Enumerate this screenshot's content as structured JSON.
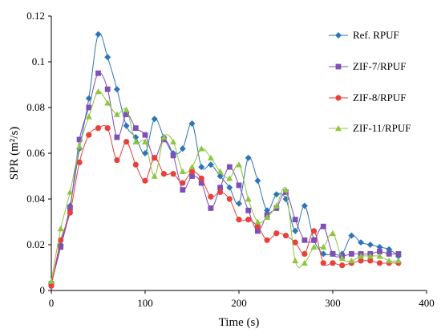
{
  "chart_data": {
    "type": "line",
    "xlabel": "Time (s)",
    "ylabel": "SPR (m²/s)",
    "xlim": [
      0,
      400
    ],
    "ylim": [
      0,
      0.12
    ],
    "xticks": [
      "0",
      "100",
      "200",
      "300",
      "400"
    ],
    "yticks": [
      "0",
      "0.02",
      "0.04",
      "0.06",
      "0.08",
      "0.1",
      "0.12"
    ],
    "grid": false,
    "legend_position": "right",
    "x": [
      0,
      10,
      20,
      30,
      40,
      50,
      60,
      70,
      80,
      90,
      100,
      110,
      120,
      130,
      140,
      150,
      160,
      170,
      180,
      190,
      200,
      210,
      220,
      230,
      240,
      250,
      260,
      270,
      280,
      290,
      300,
      310,
      320,
      330,
      340,
      350,
      360,
      370
    ],
    "series": [
      {
        "name": "Ref. RPUF",
        "color": "#2e75b6",
        "marker": "diamond",
        "values": [
          0.003,
          0.02,
          0.037,
          0.062,
          0.084,
          0.112,
          0.102,
          0.088,
          0.072,
          0.067,
          0.06,
          0.075,
          0.067,
          0.06,
          0.062,
          0.073,
          0.054,
          0.055,
          0.05,
          0.045,
          0.038,
          0.058,
          0.048,
          0.035,
          0.042,
          0.04,
          0.026,
          0.037,
          0.022,
          0.016,
          0.016,
          0.016,
          0.024,
          0.021,
          0.02,
          0.019,
          0.018,
          0.015
        ]
      },
      {
        "name": "ZIF-7/RPUF",
        "color": "#7f4fb8",
        "marker": "square",
        "values": [
          0.003,
          0.019,
          0.036,
          0.066,
          0.08,
          0.095,
          0.088,
          0.067,
          0.077,
          0.071,
          0.068,
          0.058,
          0.066,
          0.059,
          0.044,
          0.05,
          0.047,
          0.036,
          0.045,
          0.054,
          0.046,
          0.035,
          0.026,
          0.033,
          0.036,
          0.043,
          0.031,
          0.022,
          0.022,
          0.028,
          0.016,
          0.015,
          0.016,
          0.016,
          0.016,
          0.017,
          0.016,
          0.016
        ]
      },
      {
        "name": "ZIF-8/RPUF",
        "color": "#e8413c",
        "marker": "circle",
        "values": [
          0.002,
          0.022,
          0.034,
          0.056,
          0.068,
          0.071,
          0.071,
          0.057,
          0.065,
          0.055,
          0.048,
          0.058,
          0.051,
          0.051,
          0.047,
          0.052,
          0.049,
          0.041,
          0.043,
          0.04,
          0.031,
          0.031,
          0.028,
          0.022,
          0.025,
          0.024,
          0.021,
          0.016,
          0.026,
          0.012,
          0.012,
          0.011,
          0.012,
          0.013,
          0.013,
          0.012,
          0.012,
          0.012
        ]
      },
      {
        "name": "ZIF-11/RPUF",
        "color": "#8dc63f",
        "marker": "triangle",
        "values": [
          0.004,
          0.027,
          0.043,
          0.063,
          0.076,
          0.087,
          0.082,
          0.077,
          0.079,
          0.065,
          0.065,
          0.05,
          0.067,
          0.065,
          0.052,
          0.054,
          0.062,
          0.058,
          0.052,
          0.049,
          0.055,
          0.04,
          0.03,
          0.032,
          0.037,
          0.044,
          0.013,
          0.012,
          0.019,
          0.019,
          0.025,
          0.014,
          0.013,
          0.015,
          0.015,
          0.015,
          0.013,
          0.013
        ]
      }
    ]
  }
}
